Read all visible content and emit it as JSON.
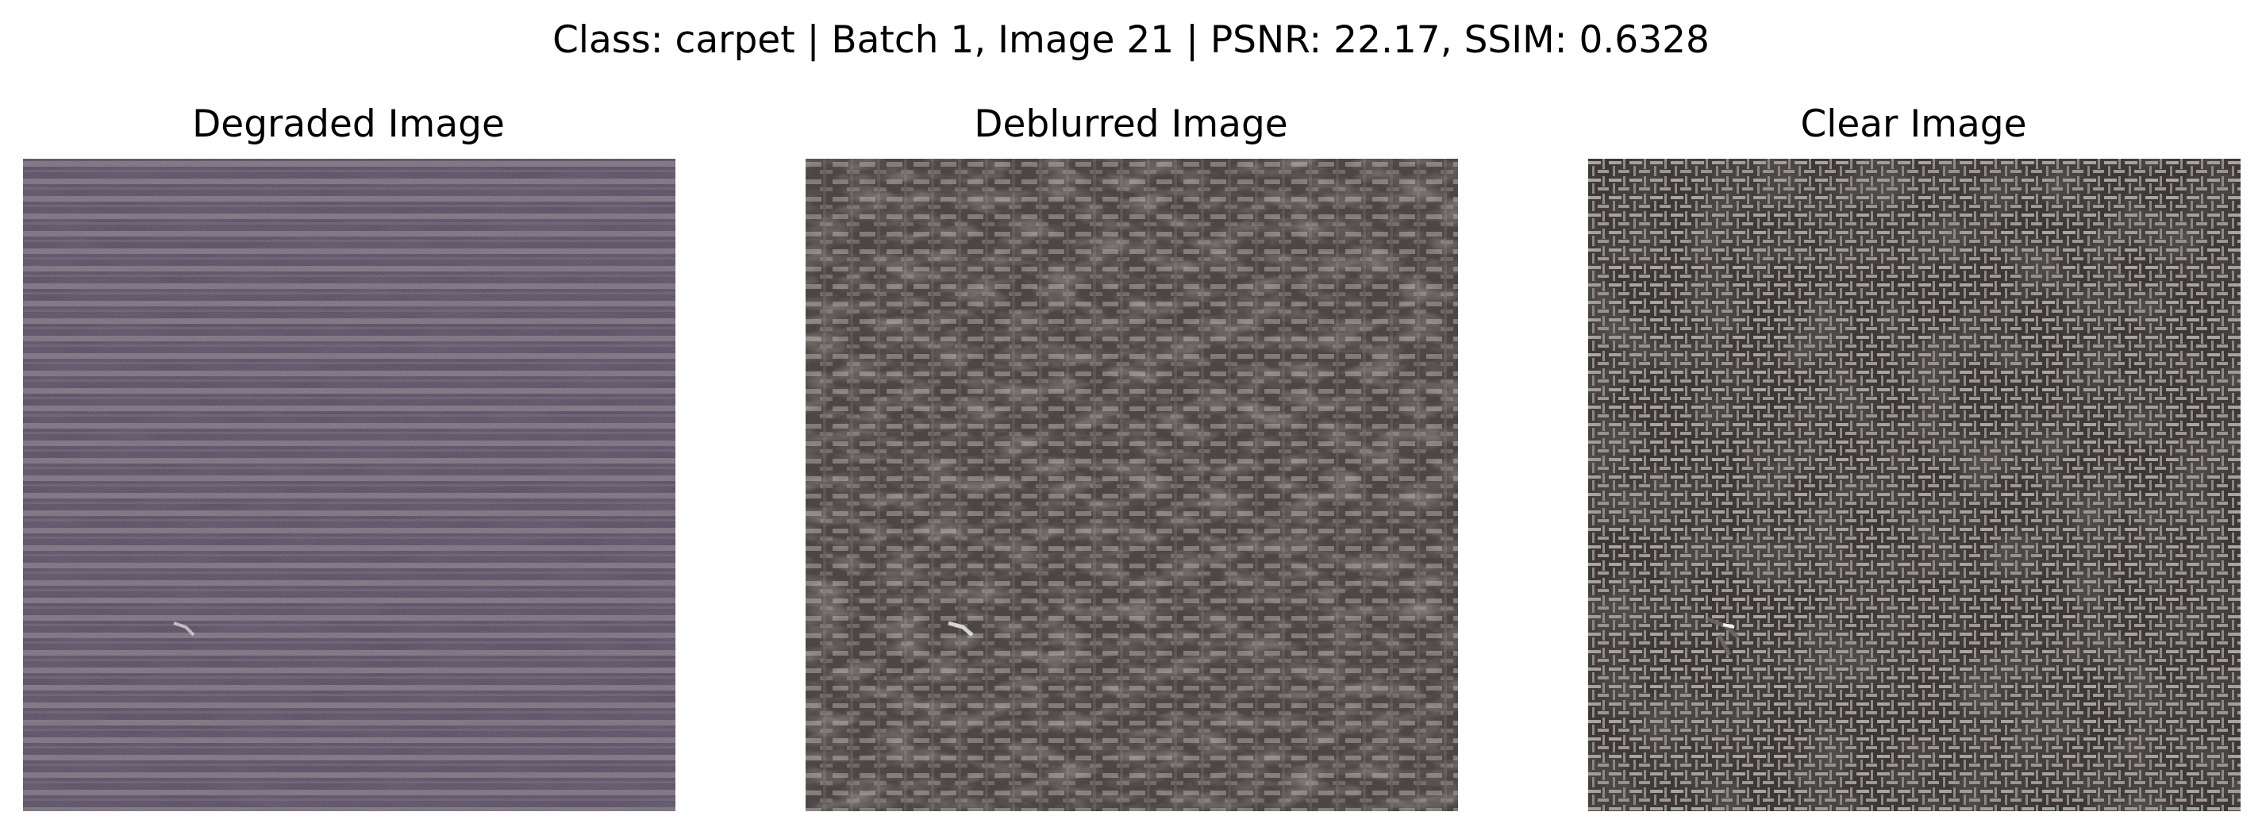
{
  "figure": {
    "suptitle": "Class: carpet | Batch 1, Image 21 | PSNR: 22.17, SSIM: 0.6328"
  },
  "panels": [
    {
      "title": "Degraded Image",
      "description": "noisy, blurred woven carpet texture",
      "base_color": "#554b57",
      "stripe_color": "#8d8089"
    },
    {
      "title": "Deblurred Image",
      "description": "restored, smoother woven carpet texture",
      "base_color": "#4a4444",
      "stripe_color": "#8c8781"
    },
    {
      "title": "Clear Image",
      "description": "sharp crosshatch woven carpet texture",
      "base_color": "#3c3839",
      "stripe_color": "#a39d96"
    }
  ]
}
